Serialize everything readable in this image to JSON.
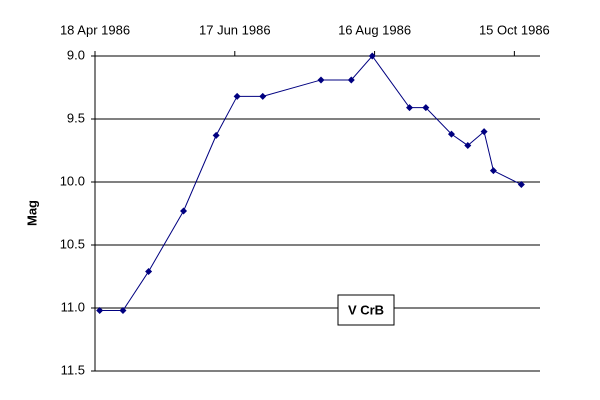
{
  "chart_data": {
    "type": "line",
    "y_label": "Mag",
    "annotation": "V CrB",
    "x": [
      "1986-04-20",
      "1986-04-30",
      "1986-05-11",
      "1986-05-26",
      "1986-06-09",
      "1986-06-18",
      "1986-06-29",
      "1986-07-24",
      "1986-08-06",
      "1986-08-15",
      "1986-08-31",
      "1986-09-07",
      "1986-09-18",
      "1986-09-25",
      "1986-10-02",
      "1986-10-06",
      "1986-10-18"
    ],
    "values": [
      11.02,
      11.02,
      10.71,
      10.23,
      9.63,
      9.32,
      9.32,
      9.19,
      9.19,
      9.0,
      9.41,
      9.41,
      9.62,
      9.71,
      9.6,
      9.91,
      10.02
    ],
    "color": "#000080",
    "xlim": [
      "1986-04-18",
      "1986-10-26"
    ],
    "xticks": [
      {
        "value": "1986-04-18",
        "label": "18 Apr 1986"
      },
      {
        "value": "1986-06-17",
        "label": "17 Jun 1986"
      },
      {
        "value": "1986-08-16",
        "label": "16 Aug 1986"
      },
      {
        "value": "1986-10-15",
        "label": "15 Oct 1986"
      }
    ],
    "ylim": [
      9.0,
      11.5
    ],
    "y_inverted": true,
    "yticks": [
      {
        "value": 9.0,
        "label": "9.0"
      },
      9.5,
      {
        "value": 10.0,
        "label": "10.0"
      },
      10.5,
      {
        "value": 11.0,
        "label": "11.0"
      },
      11.5
    ],
    "grid": true
  }
}
